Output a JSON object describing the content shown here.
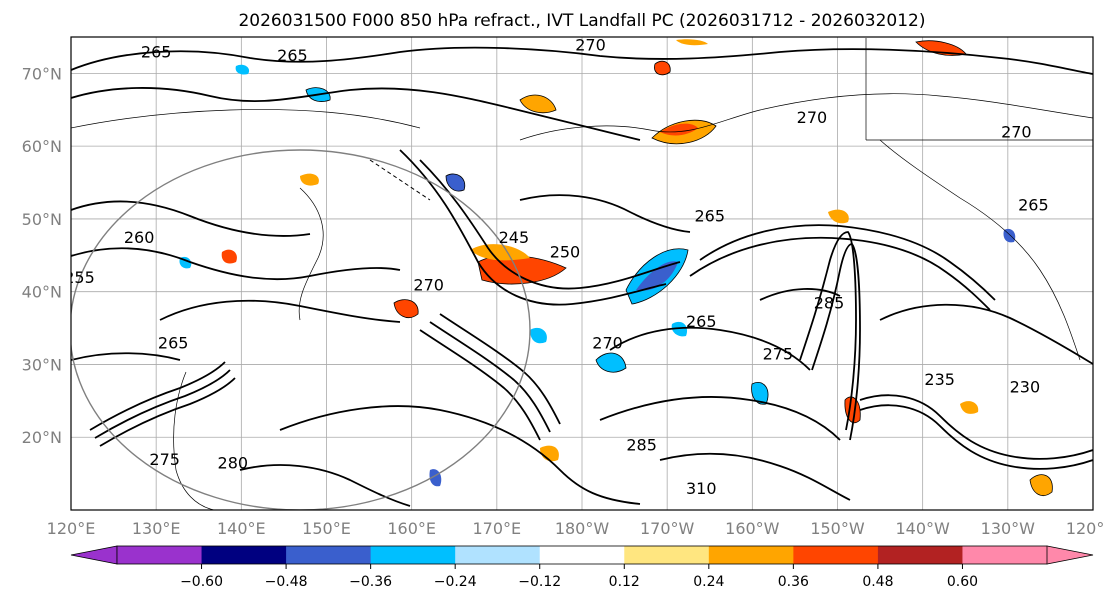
{
  "title": "2026031500 F000 850 hPa refract., IVT Landfall PC (2026031712 - 2026032012)",
  "lat_labels": [
    {
      "text": "70°N",
      "lat": 70
    },
    {
      "text": "60°N",
      "lat": 60
    },
    {
      "text": "50°N",
      "lat": 50
    },
    {
      "text": "40°N",
      "lat": 40
    },
    {
      "text": "30°N",
      "lat": 30
    },
    {
      "text": "20°N",
      "lat": 20
    }
  ],
  "lon_labels": [
    {
      "text": "120°E",
      "lon": 120
    },
    {
      "text": "130°E",
      "lon": 130
    },
    {
      "text": "140°E",
      "lon": 140
    },
    {
      "text": "150°E",
      "lon": 150
    },
    {
      "text": "160°E",
      "lon": 160
    },
    {
      "text": "170°E",
      "lon": 170
    },
    {
      "text": "180°W",
      "lon": 180
    },
    {
      "text": "170°W",
      "lon": 190
    },
    {
      "text": "160°W",
      "lon": 200
    },
    {
      "text": "150°W",
      "lon": 210
    },
    {
      "text": "140°W",
      "lon": 220
    },
    {
      "text": "130°W",
      "lon": 230
    },
    {
      "text": "120°W",
      "lon": 240
    }
  ],
  "map_extent": {
    "lon_min": 120,
    "lon_max": 240,
    "lat_min": 10,
    "lat_max": 75
  },
  "colorbar": {
    "ticks": [
      "−0.60",
      "−0.48",
      "−0.36",
      "−0.24",
      "−0.12",
      "0.12",
      "0.24",
      "0.36",
      "0.48",
      "0.60"
    ],
    "under_color": "#9a32cd",
    "over_color": "#ff88aa",
    "colors": [
      "#9a32cd",
      "#000080",
      "#3a5fcd",
      "#00bfff",
      "#b0e2ff",
      "#ffffff",
      "#ffe680",
      "#ffa500",
      "#ff4500",
      "#b22222",
      "#ff88aa"
    ]
  },
  "contour_labels": [
    {
      "text": "265",
      "lon": 130,
      "lat": 73
    },
    {
      "text": "265",
      "lon": 146,
      "lat": 72.5
    },
    {
      "text": "270",
      "lon": 181,
      "lat": 74
    },
    {
      "text": "270",
      "lon": 207,
      "lat": 64
    },
    {
      "text": "270",
      "lon": 231,
      "lat": 62
    },
    {
      "text": "265",
      "lon": 233,
      "lat": 52
    },
    {
      "text": "265",
      "lon": 195,
      "lat": 50.5
    },
    {
      "text": "245",
      "lon": 172,
      "lat": 47.5
    },
    {
      "text": "250",
      "lon": 178,
      "lat": 45.5
    },
    {
      "text": "260",
      "lon": 128,
      "lat": 47.5
    },
    {
      "text": "255",
      "lon": 121,
      "lat": 42
    },
    {
      "text": "265",
      "lon": 132,
      "lat": 33
    },
    {
      "text": "270",
      "lon": 162,
      "lat": 41
    },
    {
      "text": "265",
      "lon": 194,
      "lat": 36
    },
    {
      "text": "270",
      "lon": 183,
      "lat": 33
    },
    {
      "text": "285",
      "lon": 209,
      "lat": 38.5
    },
    {
      "text": "275",
      "lon": 203,
      "lat": 31.5
    },
    {
      "text": "235",
      "lon": 222,
      "lat": 28
    },
    {
      "text": "230",
      "lon": 232,
      "lat": 27
    },
    {
      "text": "275",
      "lon": 131,
      "lat": 17
    },
    {
      "text": "280",
      "lon": 139,
      "lat": 16.5
    },
    {
      "text": "285",
      "lon": 187,
      "lat": 19
    },
    {
      "text": "310",
      "lon": 194,
      "lat": 13
    }
  ]
}
